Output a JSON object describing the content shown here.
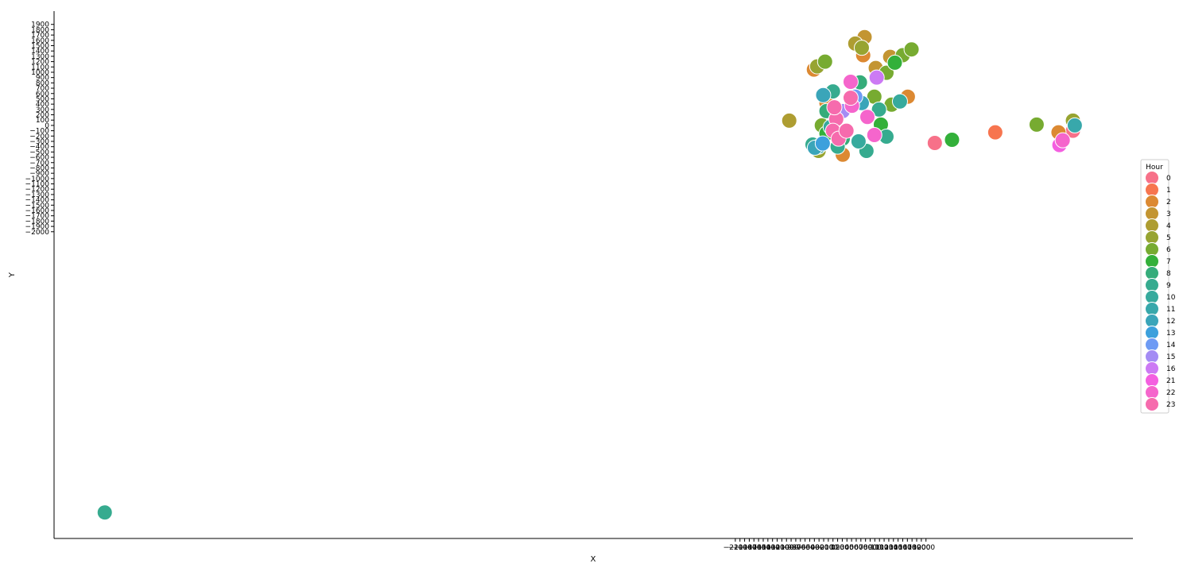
{
  "chart_data": {
    "type": "scatter",
    "x_label": "X",
    "y_label": "Y",
    "legend_title": "Hour",
    "legend": "right",
    "xlim": [
      -16750,
      6450
    ],
    "ylim": [
      -7770,
      2150
    ],
    "xticks": [
      {
        "value": -2100,
        "label": "−2100"
      },
      {
        "value": -2000,
        "label": "−2000"
      },
      {
        "value": -1900,
        "label": "−1900"
      },
      {
        "value": -1800,
        "label": "−1800"
      },
      {
        "value": -1700,
        "label": "−1700"
      },
      {
        "value": -1600,
        "label": "−1600"
      },
      {
        "value": -1500,
        "label": "−1500"
      },
      {
        "value": -1400,
        "label": "−1400"
      },
      {
        "value": -1300,
        "label": "−1300"
      },
      {
        "value": -1200,
        "label": "−1200"
      },
      {
        "value": -1100,
        "label": "−1100"
      },
      {
        "value": -1000,
        "label": "−1000"
      },
      {
        "value": -900,
        "label": "−900"
      },
      {
        "value": -800,
        "label": "−800"
      },
      {
        "value": -700,
        "label": "−700"
      },
      {
        "value": -600,
        "label": "−600"
      },
      {
        "value": -500,
        "label": "−500"
      },
      {
        "value": -400,
        "label": "−400"
      },
      {
        "value": -300,
        "label": "−300"
      },
      {
        "value": -200,
        "label": "−200"
      },
      {
        "value": -100,
        "label": "−100"
      },
      0,
      100,
      200,
      300,
      400,
      500,
      600,
      700,
      800,
      900,
      1000,
      1100,
      1200,
      1300,
      1400,
      1500,
      1600,
      1700,
      1800,
      1900,
      2000
    ],
    "yticks": [
      {
        "value": -2000,
        "label": "−2000"
      },
      {
        "value": -1900,
        "label": "−1900"
      },
      {
        "value": -1800,
        "label": "−1800"
      },
      {
        "value": -1700,
        "label": "−1700"
      },
      {
        "value": -1600,
        "label": "−1600"
      },
      {
        "value": -1500,
        "label": "−1500"
      },
      {
        "value": -1400,
        "label": "−1400"
      },
      {
        "value": -1300,
        "label": "−1300"
      },
      {
        "value": -1200,
        "label": "−1200"
      },
      {
        "value": -1100,
        "label": "−1100"
      },
      {
        "value": -1000,
        "label": "−1000"
      },
      {
        "value": -900,
        "label": "−900"
      },
      {
        "value": -800,
        "label": "−800"
      },
      {
        "value": -700,
        "label": "−700"
      },
      {
        "value": -600,
        "label": "−600"
      },
      {
        "value": -500,
        "label": "−500"
      },
      {
        "value": -400,
        "label": "−400"
      },
      {
        "value": -300,
        "label": "−300"
      },
      {
        "value": -200,
        "label": "−200"
      },
      {
        "value": -100,
        "label": "−100"
      },
      0,
      100,
      200,
      300,
      400,
      500,
      600,
      700,
      800,
      900,
      1000,
      1100,
      1200,
      1300,
      1400,
      1500,
      1600,
      1700,
      1800,
      1900
    ],
    "series": [
      {
        "name": "0",
        "color": "#f77189",
        "x": [
          2190,
          5160
        ],
        "values": [
          -330,
          -100
        ]
      },
      {
        "name": "1",
        "color": "#f7754f",
        "x": [
          3490
        ],
        "values": [
          -130
        ]
      },
      {
        "name": "2",
        "color": "#dc8932",
        "x": [
          -410,
          650,
          1610,
          4850,
          210,
          -140
        ],
        "values": [
          1050,
          1320,
          540,
          -130,
          -550,
          420
        ]
      },
      {
        "name": "3",
        "color": "#c39532",
        "x": [
          680,
          1230,
          920
        ],
        "values": [
          1660,
          1290,
          1080
        ]
      },
      {
        "name": "4",
        "color": "#ae9d31",
        "x": [
          -940,
          480
        ],
        "values": [
          90,
          1540
        ]
      },
      {
        "name": "5",
        "color": "#97a431",
        "x": [
          620,
          -310,
          5160,
          -340
        ],
        "values": [
          1460,
          -480,
          90,
          1110
        ]
      },
      {
        "name": "6",
        "color": "#77ab31",
        "x": [
          1500,
          -170,
          4380,
          1150,
          890,
          1260,
          -240,
          1690
        ],
        "values": [
          1320,
          1200,
          15,
          990,
          540,
          390,
          0,
          1430
        ]
      },
      {
        "name": "7",
        "color": "#33b03a",
        "x": [
          2560,
          1330,
          1030,
          -140
        ],
        "values": [
          -270,
          1180,
          15,
          -150
        ]
      },
      {
        "name": "8",
        "color": "#35ac7a",
        "x": [
          580,
          210,
          -140
        ],
        "values": [
          810,
          -250,
          270
        ]
      },
      {
        "name": "9",
        "color": "#36ab8f",
        "x": [
          -15660,
          1150,
          720,
          990,
          0,
          100,
          -440
        ],
        "values": [
          -7280,
          -210,
          -480,
          300,
          640,
          -400,
          -360
        ]
      },
      {
        "name": "10",
        "color": "#37aa9d",
        "x": [
          1440,
          550,
          -50
        ],
        "values": [
          450,
          -300,
          -30
        ]
      },
      {
        "name": "11",
        "color": "#38a8ab",
        "x": [
          5200,
          -310
        ],
        "values": [
          0,
          -400
        ]
      },
      {
        "name": "12",
        "color": "#3aa5b9",
        "x": [
          -210,
          620,
          -390
        ],
        "values": [
          570,
          420,
          -420
        ]
      },
      {
        "name": "13",
        "color": "#3ca0dc",
        "x": [
          -220
        ],
        "values": [
          -340
        ]
      },
      {
        "name": "14",
        "color": "#6e9bf4",
        "x": [
          480
        ],
        "values": [
          540
        ]
      },
      {
        "name": "15",
        "color": "#a48cf4",
        "x": [
          210
        ],
        "values": [
          270
        ]
      },
      {
        "name": "16",
        "color": "#cc7af4",
        "x": [
          940
        ],
        "values": [
          900
        ]
      },
      {
        "name": "21",
        "color": "#f45fe0",
        "x": [
          4870
        ],
        "values": [
          -370
        ]
      },
      {
        "name": "22",
        "color": "#f565cc",
        "x": [
          4940,
          890,
          380,
          410,
          740
        ],
        "values": [
          -280,
          -180,
          820,
          370,
          160
        ]
      },
      {
        "name": "23",
        "color": "#f66bad",
        "x": [
          70,
          0,
          120,
          380,
          30,
          290
        ],
        "values": [
          120,
          -100,
          -250,
          520,
          340,
          -100
        ]
      }
    ]
  }
}
